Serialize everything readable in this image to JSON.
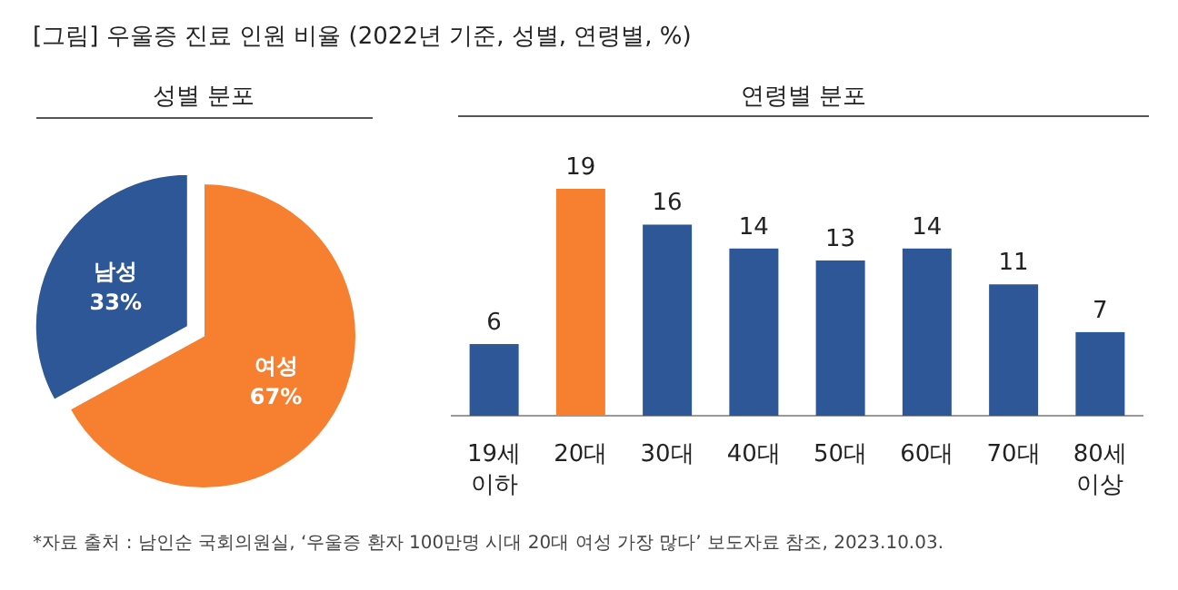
{
  "chart_data": [
    {
      "type": "pie",
      "title": "성별 분포",
      "categories": [
        "남성",
        "여성"
      ],
      "values": [
        33,
        67
      ],
      "colors": [
        "#2e5797",
        "#f77f30"
      ],
      "value_labels": [
        "33%",
        "67%"
      ],
      "annotations": [
        "[그림] 우울증 진료 인원 비율 (2022년 기준, 성별, 연령별, %)"
      ]
    },
    {
      "type": "bar",
      "title": "연령별 분포",
      "categories": [
        "19세 이하",
        "20대",
        "30대",
        "40대",
        "50대",
        "60대",
        "70대",
        "80세 이상"
      ],
      "values": [
        6,
        19,
        16,
        14,
        13,
        14,
        11,
        7
      ],
      "colors": [
        "#2e5797",
        "#f77f30",
        "#2e5797",
        "#2e5797",
        "#2e5797",
        "#2e5797",
        "#2e5797",
        "#2e5797"
      ],
      "data_labels": true,
      "annotations": [
        "*자료 출처 : 남인순 국회의원실, ‘우울증 환자 100만명 시대 20대 여성 가장 많다’ 보도자료 참조, 2023.10.03."
      ]
    }
  ]
}
